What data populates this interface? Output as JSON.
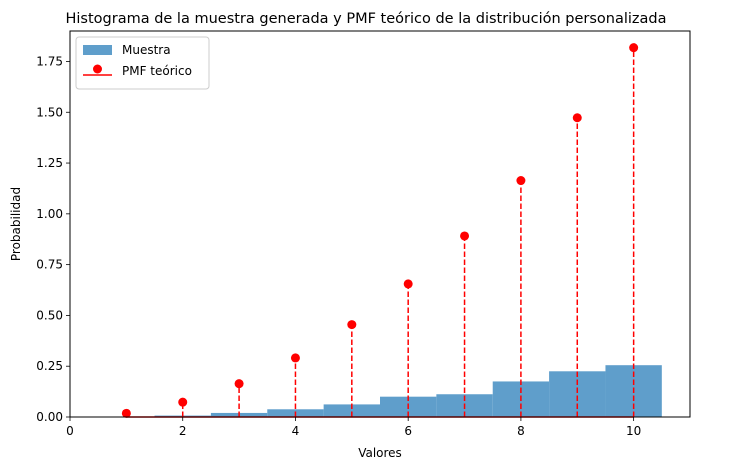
{
  "chart_data": {
    "type": "bar",
    "title": "Histograma de la muestra generada y PMF teórico de la distribución personalizada",
    "xlabel": "Valores",
    "ylabel": "Probabilidad",
    "xlim": [
      0,
      11
    ],
    "ylim": [
      0,
      1.9
    ],
    "xticks": [
      0,
      2,
      4,
      6,
      8,
      10
    ],
    "yticks": [
      0.0,
      0.25,
      0.5,
      0.75,
      1.0,
      1.25,
      1.5,
      1.75
    ],
    "xtick_labels": [
      "0",
      "2",
      "4",
      "6",
      "8",
      "10"
    ],
    "ytick_labels": [
      "0.00",
      "0.25",
      "0.50",
      "0.75",
      "1.00",
      "1.25",
      "1.50",
      "1.75"
    ],
    "grid": false,
    "legend_position": "top-left",
    "series": [
      {
        "name": "Muestra",
        "kind": "histogram",
        "color": "#5f9ecb",
        "bins": [
          {
            "x0": 0.5,
            "x1": 1.5,
            "value": 0.002
          },
          {
            "x0": 1.5,
            "x1": 2.5,
            "value": 0.007
          },
          {
            "x0": 2.5,
            "x1": 3.5,
            "value": 0.02
          },
          {
            "x0": 3.5,
            "x1": 4.5,
            "value": 0.038
          },
          {
            "x0": 4.5,
            "x1": 5.5,
            "value": 0.062
          },
          {
            "x0": 5.5,
            "x1": 6.5,
            "value": 0.1
          },
          {
            "x0": 6.5,
            "x1": 7.5,
            "value": 0.112
          },
          {
            "x0": 7.5,
            "x1": 8.5,
            "value": 0.175
          },
          {
            "x0": 8.5,
            "x1": 9.5,
            "value": 0.225
          },
          {
            "x0": 9.5,
            "x1": 10.5,
            "value": 0.255
          }
        ]
      },
      {
        "name": "PMF teórico",
        "kind": "stem",
        "color": "#ff0000",
        "x": [
          1,
          2,
          3,
          4,
          5,
          6,
          7,
          8,
          9,
          10
        ],
        "values": [
          0.018,
          0.073,
          0.164,
          0.291,
          0.455,
          0.655,
          0.891,
          1.164,
          1.473,
          1.818
        ]
      }
    ]
  }
}
